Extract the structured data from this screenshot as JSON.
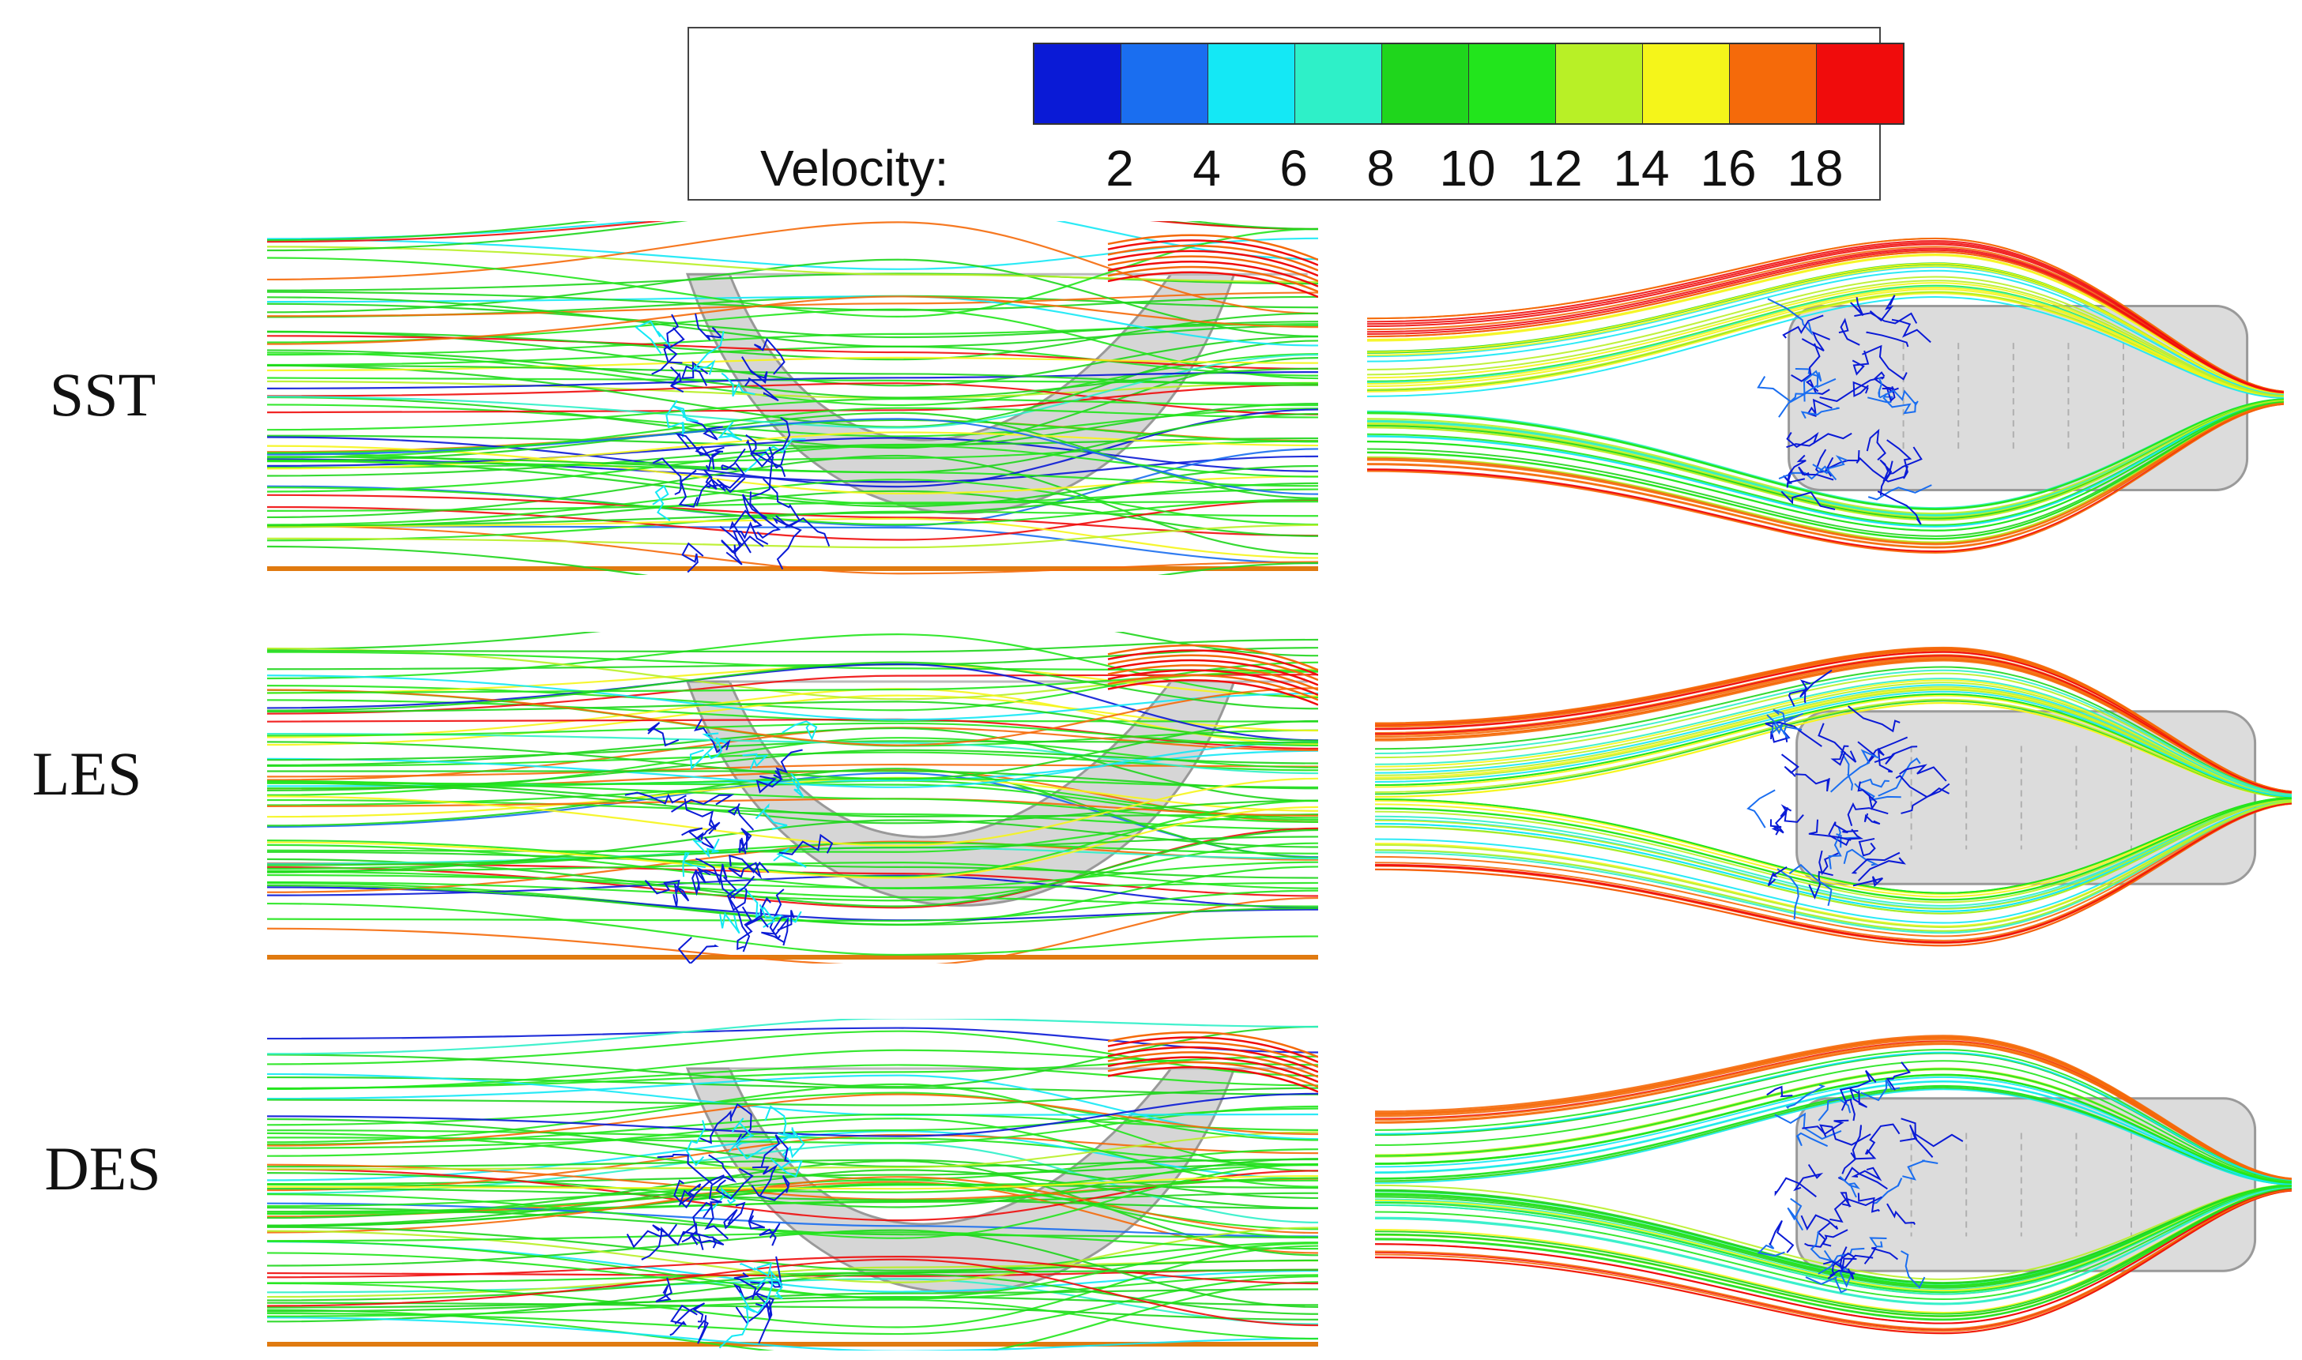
{
  "legend": {
    "label": "Velocity:",
    "ticks": [
      "2",
      "4",
      "6",
      "8",
      "10",
      "12",
      "14",
      "16",
      "18"
    ],
    "colors": [
      "#0a1ad6",
      "#1a6ef0",
      "#14e8f5",
      "#2ef0c8",
      "#1fd61c",
      "#22e51c",
      "#b8f026",
      "#f5f51a",
      "#f56a0a",
      "#f00c0c"
    ]
  },
  "rows": [
    {
      "label": "SST"
    },
    {
      "label": "LES"
    },
    {
      "label": "DES"
    }
  ]
}
